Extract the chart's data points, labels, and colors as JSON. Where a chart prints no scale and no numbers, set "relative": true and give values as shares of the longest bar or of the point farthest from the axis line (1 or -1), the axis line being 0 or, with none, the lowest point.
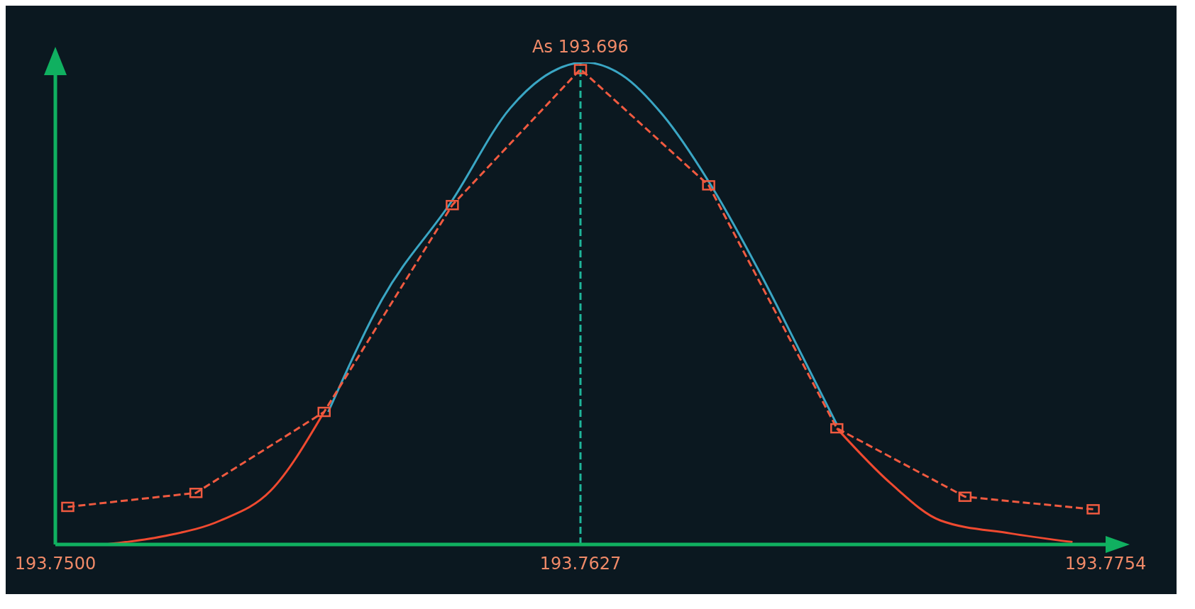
{
  "chart_data": {
    "type": "line",
    "relative": true,
    "xlim": [
      193.75,
      193.7754
    ],
    "xticks": [
      {
        "value": 193.75,
        "label": "193.7500"
      },
      193.7627,
      193.7754
    ],
    "grid": false,
    "legend": false,
    "ref_lines": [
      {
        "axis": "x",
        "value": 193.7627,
        "label": "As 193.696",
        "color": "#1fb59a",
        "line_style": "dashed"
      }
    ],
    "series": [
      {
        "color": "#3aa6c4",
        "marker": "none",
        "line_style": "solid",
        "x": [
          193.7566,
          193.7579,
          193.7596,
          193.761,
          193.762,
          193.7628,
          193.7637,
          193.7647,
          193.7658,
          193.7671,
          193.768,
          193.7689
        ],
        "values": [
          0.275,
          0.508,
          0.714,
          0.905,
          0.98,
          1,
          0.974,
          0.89,
          0.753,
          0.554,
          0.402,
          0.249
        ]
      },
      {
        "color": "#f04a30",
        "marker": "none",
        "line_style": "solid",
        "x": [
          193.7512,
          193.7526,
          193.754,
          193.7552,
          193.7565,
          193.7627,
          193.7689,
          193.7702,
          193.7714,
          193.7731,
          193.7746
        ],
        "values": [
          0,
          0.017,
          0.05,
          0.111,
          0.275,
          null,
          0.241,
          0.127,
          0.05,
          0.023,
          0.005
        ]
      },
      {
        "color": "#f05a40",
        "marker": "square",
        "line_style": "dashed",
        "x": [
          193.7503,
          193.7534,
          193.7565,
          193.7596,
          193.7627,
          193.7658,
          193.7689,
          193.772,
          193.7751
        ],
        "values": [
          0.078,
          0.107,
          0.275,
          0.704,
          0.986,
          0.745,
          0.241,
          0.099,
          0.073
        ]
      }
    ]
  }
}
